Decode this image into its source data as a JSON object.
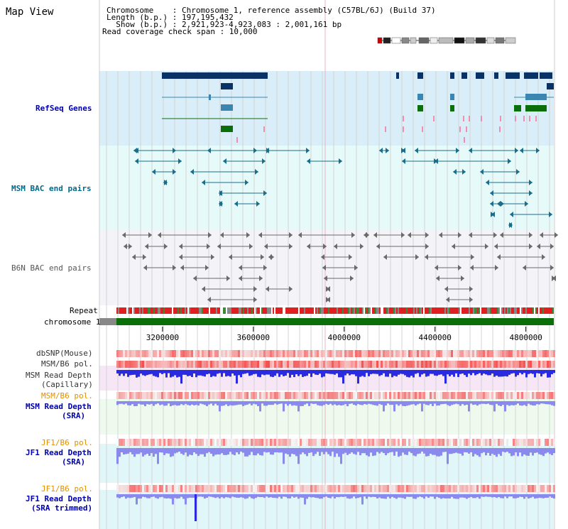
{
  "title": "Map View",
  "header": {
    "chromosome": "Chromosome    : Chromosome 1, reference assembly (C57BL/6J) (Build 37)",
    "length": "Length (b.p.) : 197,195,432",
    "show": "  Show (b.p.) : 2,921,923-4,923,083 : 2,001,161 bp",
    "span": "Read coverage check span : 10,000"
  },
  "tracks": {
    "refseq": "RefSeq Genes",
    "msm_bac": "MSM BAC end pairs",
    "b6n_bac": "B6N BAC end pairs",
    "repeat": "Repeat",
    "chromosome": "chromosome 1",
    "dbsnp": "dbSNP(Mouse)",
    "msm_b6_pol_1": "MSM/B6 pol.",
    "msm_depth_cap_1": "MSM Read Depth",
    "msm_depth_cap_2": "(Capillary)",
    "msm_b6_pol_2": "MSM/B6 pol.",
    "msm_depth_sra_1": "MSM Read Depth",
    "msm_depth_sra_2": "(SRA)",
    "jf1_b6_pol_1": "JF1/B6 pol.",
    "jf1_depth_sra_1": "JF1 Read Depth",
    "jf1_depth_sra_2": "(SRA)",
    "jf1_b6_pol_2": "JF1/B6 pol.",
    "jf1_depth_trim_1": "JF1 Read Depth",
    "jf1_depth_trim_2": "(SRA trimmed)"
  },
  "axis": {
    "ticks": [
      "3200000",
      "3600000",
      "4000000",
      "4400000",
      "4800000"
    ],
    "tick_values": [
      3200000,
      3600000,
      4000000,
      4400000,
      4800000
    ],
    "range_start": 2921923,
    "range_end": 4923083
  },
  "colors": {
    "refseq_bg": "#d9eef8",
    "msm_bg": "#e6fafa",
    "b6n_bg": "#f4f4f8",
    "gene_dark": "#0a3266",
    "gene_mid": "#3a86b0",
    "gene_green": "#0a6e0a",
    "msm_pair": "#1a6e8c",
    "b6n_pair": "#6a6a6a",
    "chrom_green": "#0a6e0a",
    "depth_blue": "#2a2ae0",
    "pol_red": "#e02020",
    "label_blue": "#0000aa",
    "label_orange": "#e09000",
    "label_refseq": "#0000aa",
    "label_msm": "#006a8a",
    "label_b6n": "#444444"
  }
}
